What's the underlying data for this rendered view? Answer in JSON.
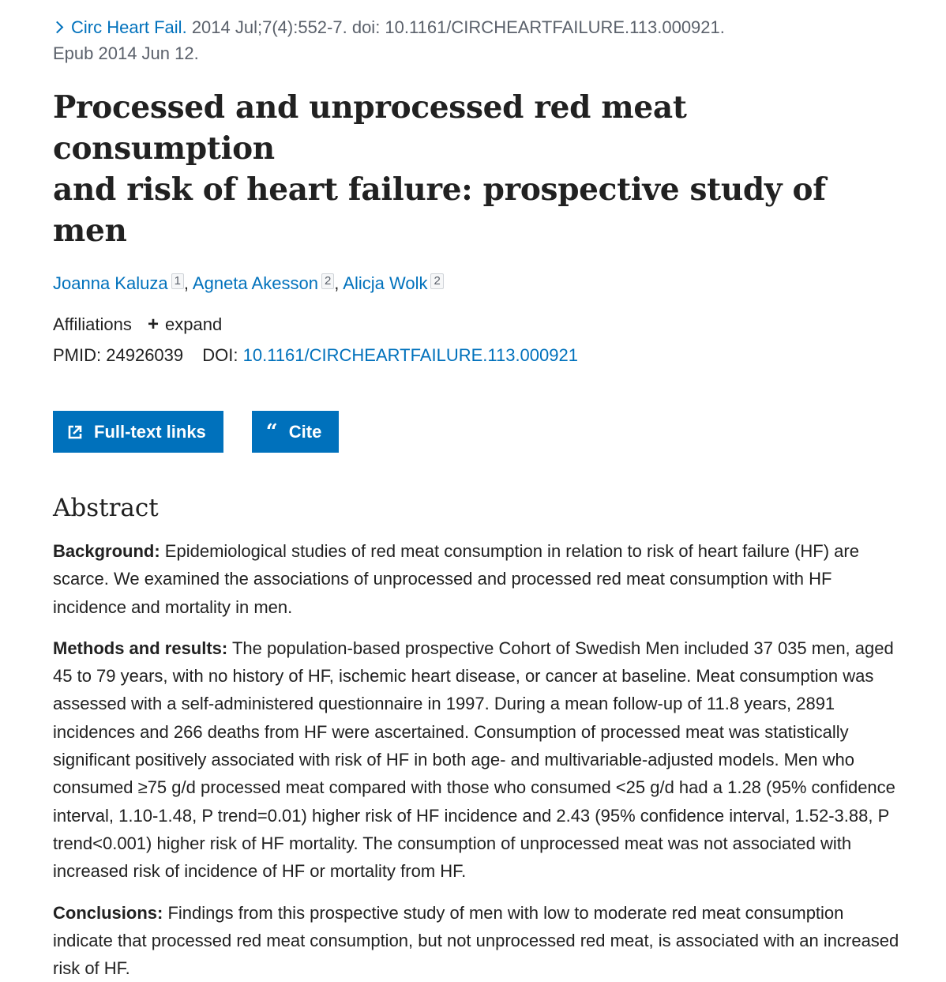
{
  "citation": {
    "journal": "Circ Heart Fail.",
    "details": "2014 Jul;7(4):552-7. doi: 10.1161/CIRCHEARTFAILURE.113.000921.",
    "epub": "Epub 2014 Jun 12."
  },
  "title_line1": "Processed and unprocessed red meat consumption",
  "title_line2": "and risk of heart failure: prospective study of men",
  "authors": [
    {
      "name": "Joanna Kaluza",
      "aff": "1"
    },
    {
      "name": "Agneta Akesson",
      "aff": "2"
    },
    {
      "name": "Alicja Wolk",
      "aff": "2"
    }
  ],
  "affiliations": {
    "label": "Affiliations",
    "expand_label": "expand"
  },
  "ids": {
    "pmid_label": "PMID:",
    "pmid": "24926039",
    "doi_label": "DOI:",
    "doi": "10.1161/CIRCHEARTFAILURE.113.000921"
  },
  "buttons": {
    "full_text": "Full-text links",
    "cite": "Cite"
  },
  "icons": {
    "journal_chevron": "chevron-right-icon",
    "full_text": "external-link-icon",
    "cite": "quote-icon"
  },
  "abstract": {
    "heading": "Abstract",
    "background_label": "Background:",
    "background_text": " Epidemiological studies of red meat consumption in relation to risk of heart failure (HF) are scarce. We examined the associations of unprocessed and processed red meat consumption with HF incidence and mortality in men.",
    "methods_label": "Methods and results:",
    "methods_text": " The population-based prospective Cohort of Swedish Men included 37 035 men, aged 45 to 79 years, with no history of HF, ischemic heart disease, or cancer at baseline. Meat consumption was assessed with a self-administered questionnaire in 1997. During a mean follow-up of 11.8 years, 2891 incidences and 266 deaths from HF were ascertained. Consumption of processed meat was statistically significant positively associated with risk of HF in both age- and multivariable-adjusted models. Men who consumed ≥75 g/d processed meat compared with those who consumed <25 g/d had a 1.28 (95% confidence interval, 1.10-1.48, P trend=0.01) higher risk of HF incidence and 2.43 (95% confidence interval, 1.52-3.88, P trend<0.001) higher risk of HF mortality. The consumption of unprocessed meat was not associated with increased risk of incidence of HF or mortality from HF.",
    "conclusions_label": "Conclusions:",
    "conclusions_text": " Findings from this prospective study of men with low to moderate red meat consumption indicate that processed red meat consumption, but not unprocessed red meat, is associated with an increased risk of HF."
  },
  "colors": {
    "link": "#0071bc",
    "button_bg": "#0071bc",
    "text": "#212121",
    "muted": "#5b616b"
  }
}
